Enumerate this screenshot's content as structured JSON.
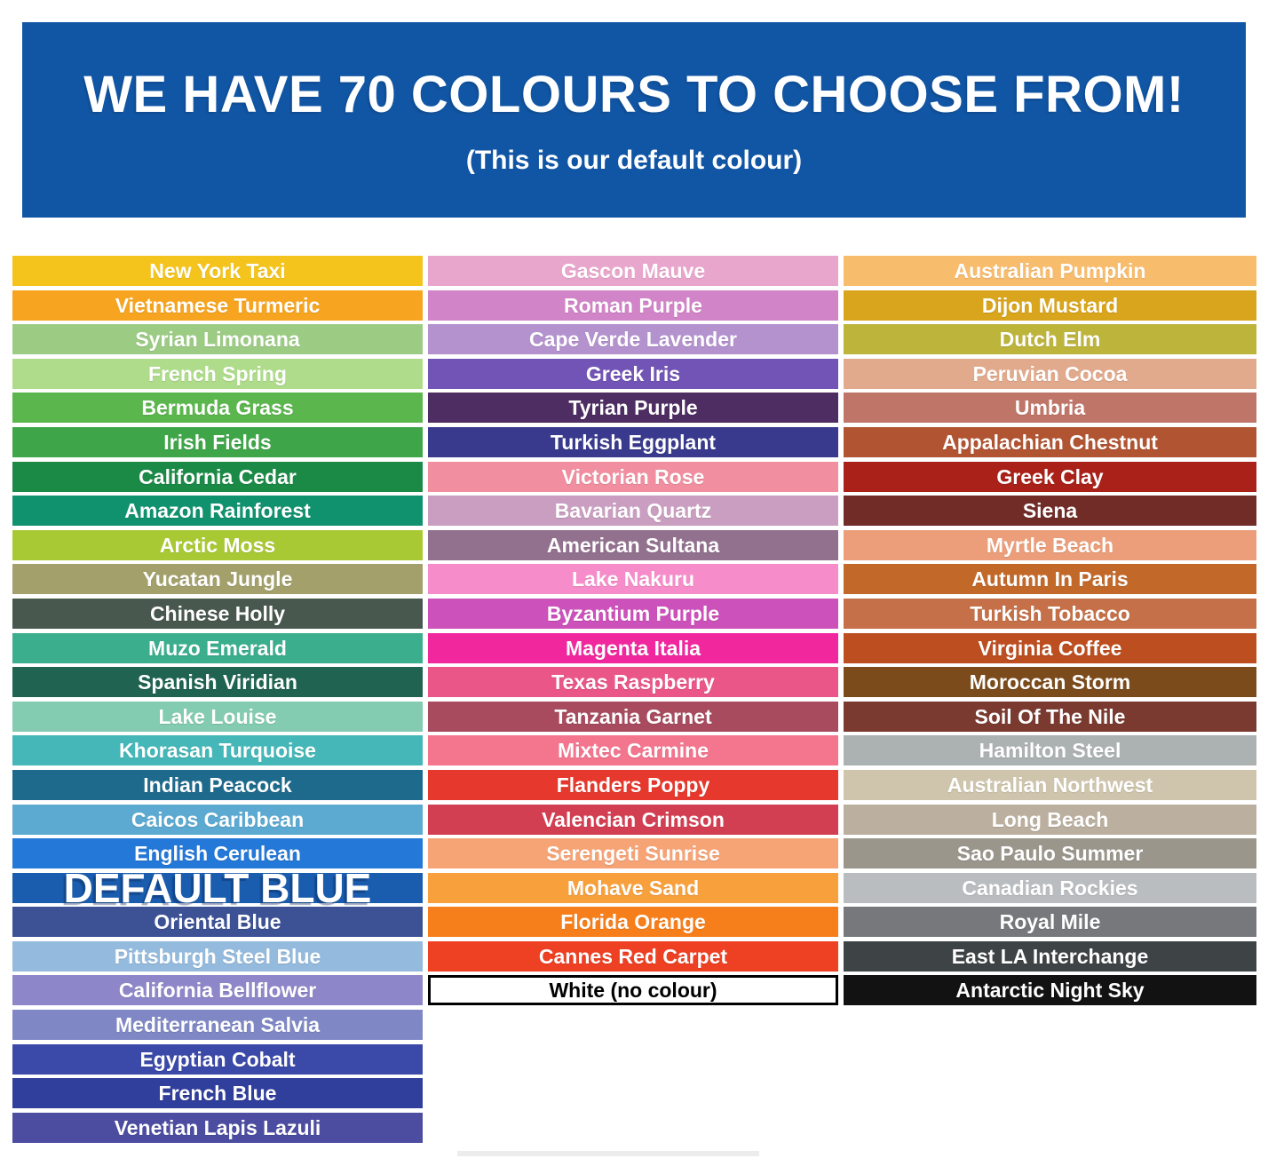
{
  "header": {
    "title": "WE HAVE 70 COLOURS TO CHOOSE FROM!",
    "subtitle": "(This is our default colour)",
    "bg": "#1156A5"
  },
  "columns": [
    {
      "swatches": [
        {
          "label": "New York Taxi",
          "bg": "#F5C41C",
          "text": "#FFFFFF"
        },
        {
          "label": "Vietnamese Turmeric",
          "bg": "#F7A520",
          "text": "#FFFFFF"
        },
        {
          "label": "Syrian Limonana",
          "bg": "#9CCB84",
          "text": "#FFFFFF"
        },
        {
          "label": "French Spring",
          "bg": "#AFDC8B",
          "text": "#FFFFFF"
        },
        {
          "label": "Bermuda Grass",
          "bg": "#5CB64E",
          "text": "#FFFFFF"
        },
        {
          "label": "Irish Fields",
          "bg": "#3EA648",
          "text": "#FFFFFF"
        },
        {
          "label": "California Cedar",
          "bg": "#1B8A46",
          "text": "#FFFFFF"
        },
        {
          "label": "Amazon Rainforest",
          "bg": "#11926F",
          "text": "#FFFFFF"
        },
        {
          "label": "Arctic Moss",
          "bg": "#A9C934",
          "text": "#FFFFFF"
        },
        {
          "label": "Yucatan Jungle",
          "bg": "#A3A06B",
          "text": "#FFFFFF"
        },
        {
          "label": "Chinese Holly",
          "bg": "#48584F",
          "text": "#FFFFFF"
        },
        {
          "label": "Muzo Emerald",
          "bg": "#3BAE8D",
          "text": "#FFFFFF"
        },
        {
          "label": "Spanish Viridian",
          "bg": "#1F6350",
          "text": "#FFFFFF"
        },
        {
          "label": "Lake Louise",
          "bg": "#83CBB1",
          "text": "#FFFFFF"
        },
        {
          "label": "Khorasan Turquoise",
          "bg": "#45B7B8",
          "text": "#FFFFFF"
        },
        {
          "label": "Indian Peacock",
          "bg": "#1E6A8D",
          "text": "#FFFFFF"
        },
        {
          "label": "Caicos Caribbean",
          "bg": "#5CA9D1",
          "text": "#FFFFFF"
        },
        {
          "label": "English Cerulean",
          "bg": "#2478D8",
          "text": "#FFFFFF"
        },
        {
          "label": "DEFAULT BLUE",
          "bg": "#1A5CAE",
          "text": "#FFFFFF",
          "variant": "default-blue"
        },
        {
          "label": "Oriental Blue",
          "bg": "#3C5295",
          "text": "#FFFFFF"
        },
        {
          "label": "Pittsburgh Steel Blue",
          "bg": "#94BADD",
          "text": "#FFFFFF"
        },
        {
          "label": "California Bellflower",
          "bg": "#8D87C9",
          "text": "#FFFFFF"
        },
        {
          "label": "Mediterranean Salvia",
          "bg": "#7F88C5",
          "text": "#FFFFFF"
        },
        {
          "label": "Egyptian Cobalt",
          "bg": "#3B49A8",
          "text": "#FFFFFF"
        },
        {
          "label": "French Blue",
          "bg": "#303E9C",
          "text": "#FFFFFF"
        },
        {
          "label": "Venetian Lapis Lazuli",
          "bg": "#4C4DA1",
          "text": "#FFFFFF"
        }
      ]
    },
    {
      "swatches": [
        {
          "label": "Gascon Mauve",
          "bg": "#E9A6CD",
          "text": "#FFFFFF"
        },
        {
          "label": "Roman Purple",
          "bg": "#D184C7",
          "text": "#FFFFFF"
        },
        {
          "label": "Cape Verde Lavender",
          "bg": "#B392CE",
          "text": "#FFFFFF"
        },
        {
          "label": "Greek Iris",
          "bg": "#7254B6",
          "text": "#FFFFFF"
        },
        {
          "label": "Tyrian Purple",
          "bg": "#4E2D62",
          "text": "#FFFFFF"
        },
        {
          "label": "Turkish Eggplant",
          "bg": "#393A8D",
          "text": "#FFFFFF"
        },
        {
          "label": "Victorian Rose",
          "bg": "#F18FA0",
          "text": "#FFFFFF"
        },
        {
          "label": "Bavarian Quartz",
          "bg": "#C99EC0",
          "text": "#FFFFFF"
        },
        {
          "label": "American Sultana",
          "bg": "#92718E",
          "text": "#FFFFFF"
        },
        {
          "label": "Lake Nakuru",
          "bg": "#F68CC9",
          "text": "#FFFFFF"
        },
        {
          "label": "Byzantium Purple",
          "bg": "#CC51BA",
          "text": "#FFFFFF"
        },
        {
          "label": "Magenta Italia",
          "bg": "#F1279E",
          "text": "#FFFFFF"
        },
        {
          "label": "Texas Raspberry",
          "bg": "#E95687",
          "text": "#FFFFFF"
        },
        {
          "label": "Tanzania Garnet",
          "bg": "#A84B5F",
          "text": "#FFFFFF"
        },
        {
          "label": "Mixtec Carmine",
          "bg": "#F3758E",
          "text": "#FFFFFF"
        },
        {
          "label": "Flanders Poppy",
          "bg": "#E6382C",
          "text": "#FFFFFF"
        },
        {
          "label": "Valencian Crimson",
          "bg": "#D33F52",
          "text": "#FFFFFF"
        },
        {
          "label": "Serengeti Sunrise",
          "bg": "#F6A476",
          "text": "#FFFFFF"
        },
        {
          "label": "Mohave Sand",
          "bg": "#F8A03C",
          "text": "#FFFFFF"
        },
        {
          "label": "Florida Orange",
          "bg": "#F77F1B",
          "text": "#FFFFFF"
        },
        {
          "label": "Cannes Red Carpet",
          "bg": "#EE4023",
          "text": "#FFFFFF"
        },
        {
          "label": "White (no colour)",
          "bg": "#FFFFFF",
          "text": "#000000",
          "variant": "white-outline"
        }
      ]
    },
    {
      "swatches": [
        {
          "label": "Australian Pumpkin",
          "bg": "#F8BC6D",
          "text": "#FFFFFF"
        },
        {
          "label": "Dijon Mustard",
          "bg": "#D9A51D",
          "text": "#FFFFFF"
        },
        {
          "label": "Dutch Elm",
          "bg": "#BDB43C",
          "text": "#FFFFFF"
        },
        {
          "label": "Peruvian Cocoa",
          "bg": "#E2AA8D",
          "text": "#FFFFFF"
        },
        {
          "label": "Umbria",
          "bg": "#BF7669",
          "text": "#FFFFFF"
        },
        {
          "label": "Appalachian Chestnut",
          "bg": "#B15432",
          "text": "#FFFFFF"
        },
        {
          "label": "Greek Clay",
          "bg": "#A92118",
          "text": "#FFFFFF"
        },
        {
          "label": "Siena",
          "bg": "#712C28",
          "text": "#FFFFFF"
        },
        {
          "label": "Myrtle Beach",
          "bg": "#EB9E79",
          "text": "#FFFFFF"
        },
        {
          "label": "Autumn In Paris",
          "bg": "#C2692A",
          "text": "#FFFFFF"
        },
        {
          "label": "Turkish Tobacco",
          "bg": "#C57048",
          "text": "#FFFFFF"
        },
        {
          "label": "Virginia Coffee",
          "bg": "#BC4E20",
          "text": "#FFFFFF"
        },
        {
          "label": "Moroccan Storm",
          "bg": "#7B4B1B",
          "text": "#FFFFFF"
        },
        {
          "label": "Soil Of The Nile",
          "bg": "#7B3A30",
          "text": "#FFFFFF"
        },
        {
          "label": "Hamilton Steel",
          "bg": "#ACB1B1",
          "text": "#FFFFFF"
        },
        {
          "label": "Australian Northwest",
          "bg": "#CFC5AD",
          "text": "#FFFFFF"
        },
        {
          "label": "Long Beach",
          "bg": "#BBAF9F",
          "text": "#FFFFFF"
        },
        {
          "label": "Sao Paulo Summer",
          "bg": "#9A968C",
          "text": "#FFFFFF"
        },
        {
          "label": "Canadian Rockies",
          "bg": "#B9BDBF",
          "text": "#FFFFFF"
        },
        {
          "label": "Royal Mile",
          "bg": "#77787C",
          "text": "#FFFFFF"
        },
        {
          "label": "East LA Interchange",
          "bg": "#3E4345",
          "text": "#FFFFFF"
        },
        {
          "label": "Antarctic Night Sky",
          "bg": "#121212",
          "text": "#FFFFFF"
        }
      ]
    }
  ]
}
